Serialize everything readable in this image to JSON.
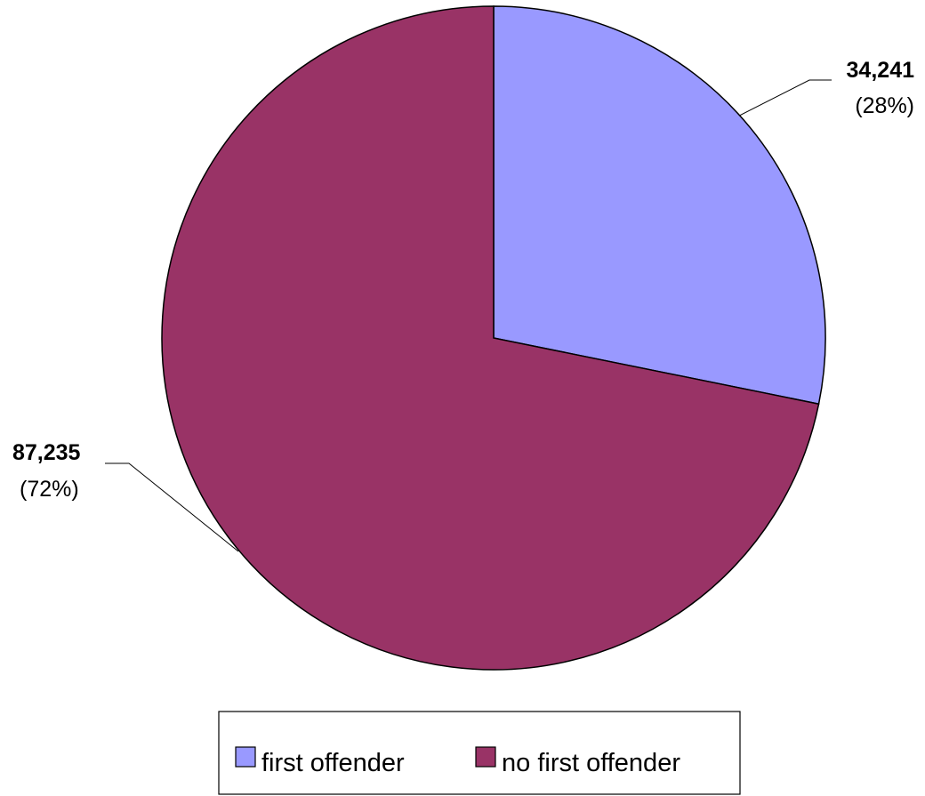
{
  "chart_data": {
    "type": "pie",
    "title": "",
    "slices": [
      {
        "label": "first offender",
        "value": 34241,
        "value_label": "34,241",
        "percent_label": "(28%)",
        "color": "#9999ff"
      },
      {
        "label": "no first offender",
        "value": 87235,
        "value_label": "87,235",
        "percent_label": "(72%)",
        "color": "#993366"
      }
    ],
    "start_angle_deg": 0,
    "direction": "clockwise",
    "legend": {
      "position": "bottom",
      "entries": [
        "first offender",
        "no first offender"
      ]
    }
  }
}
